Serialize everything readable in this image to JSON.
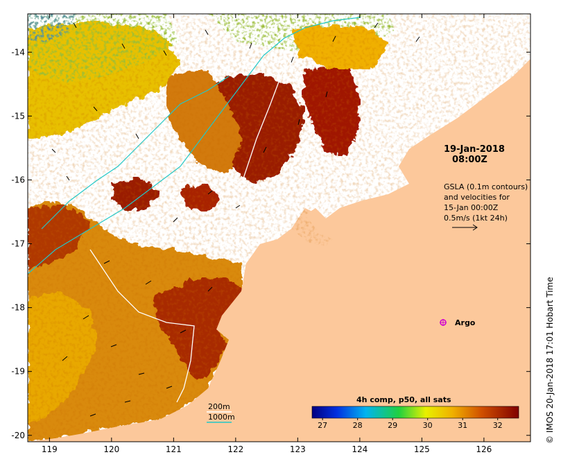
{
  "map": {
    "date_line1": "19-Jan-2018",
    "date_line2": "08:00Z",
    "gsla_lines": [
      "GSLA (0.1m contours)",
      "and velocities for",
      "15-Jan 00:00Z",
      "0.5m/s (1kt 24h)"
    ],
    "argo_label": "Argo",
    "depth_200": "200m",
    "depth_1000": "1000m",
    "colorbar_title": "4h comp, p50, all sats",
    "colorbar_ticks": [
      "27",
      "28",
      "29",
      "30",
      "31",
      "32"
    ],
    "colorbar_range": [
      26.7,
      32.6
    ],
    "lon_ticks": [
      "119",
      "120",
      "121",
      "122",
      "123",
      "124",
      "125",
      "126"
    ],
    "lon_range": [
      118.65,
      126.75
    ],
    "lat_ticks": [
      "-14",
      "-15",
      "-16",
      "-17",
      "-18",
      "-19",
      "-20"
    ],
    "lat_range": [
      -13.4,
      -20.1
    ],
    "credit": "© IMOS 20-Jan-2018 17:01 Hobart Time",
    "colors": {
      "land": "#fcc89b",
      "hot": "#9a1a00",
      "warm": "#d27a08",
      "mid": "#f0b400",
      "cool_green": "#7ad84a",
      "cool_blue": "#1a7ad8",
      "contour_200": "#ffffff",
      "contour_1000": "#22c8c8",
      "argo": "#d000d0"
    }
  }
}
